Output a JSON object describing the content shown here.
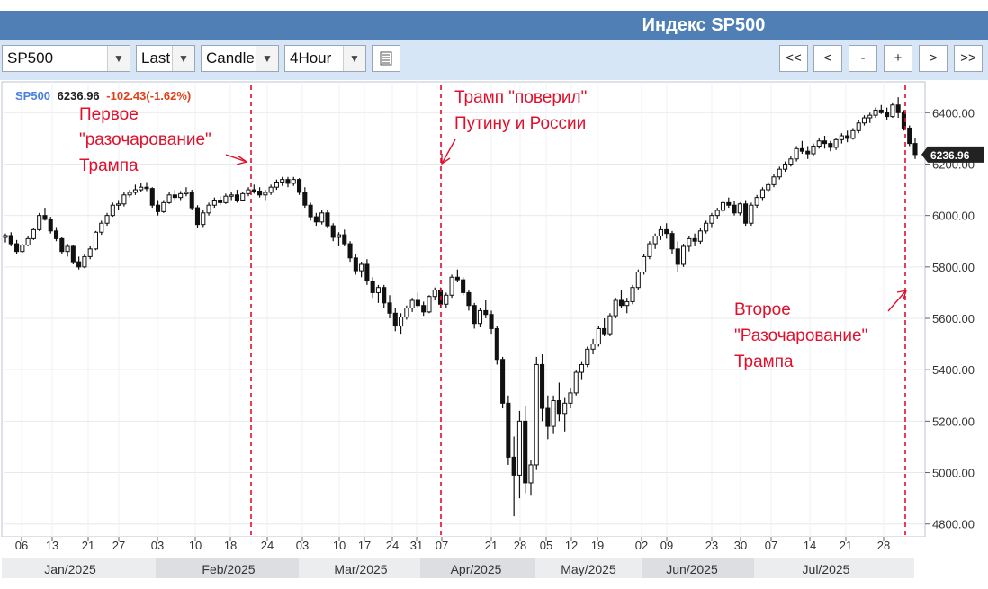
{
  "header": {
    "title": "Индекс SP500"
  },
  "toolbar": {
    "symbol": "SP500",
    "price_type": "Last",
    "chart_style": "Candle",
    "interval": "4Hour",
    "nav": [
      "<<",
      "<",
      "-",
      "+",
      ">",
      ">>"
    ]
  },
  "quote": {
    "symbol": "SP500",
    "last": "6236.96",
    "change": "-102.43(-1.62%)"
  },
  "annotations": {
    "first": [
      "Первое",
      "\"разочарование\"",
      "Трампа"
    ],
    "second": [
      "Трамп \"поверил\"",
      "Путину и России"
    ],
    "third": [
      "Второе",
      "\"Разочарование\"",
      "Трампа"
    ]
  },
  "colors": {
    "accent": "#4f7fb4",
    "annotation": "#e0102c",
    "symbol": "#4a7fe0",
    "change": "#e0401a"
  },
  "chart_data": {
    "type": "candlestick",
    "y_ticks": [
      4800,
      5000,
      5200,
      5400,
      5600,
      5800,
      6000,
      6200,
      6400
    ],
    "y_tick_labels": [
      "4800.00",
      "5000.00",
      "5200.00",
      "5400.00",
      "5600.00",
      "5800.00",
      "6000.00",
      "6200.00",
      "6400.00"
    ],
    "ylim": [
      4750,
      6520
    ],
    "last_price_label": "6236.96",
    "x_tick_labels": [
      "06",
      "13",
      "21",
      "27",
      "03",
      "10",
      "18",
      "24",
      "03",
      "10",
      "17",
      "24",
      "31",
      "07",
      "21",
      "28",
      "05",
      "12",
      "19",
      "02",
      "09",
      "23",
      "30",
      "07",
      "14",
      "21",
      "28"
    ],
    "months": [
      "Jan/2025",
      "Feb/2025",
      "Mar/2025",
      "Apr/2025",
      "May/2025",
      "Jun/2025",
      "Jul/2025"
    ],
    "series": [
      {
        "values": [
          [
            5915,
            5930,
            5895,
            5922
          ],
          [
            5922,
            5935,
            5880,
            5890
          ],
          [
            5890,
            5905,
            5850,
            5860
          ],
          [
            5860,
            5890,
            5855,
            5885
          ],
          [
            5885,
            5920,
            5880,
            5910
          ],
          [
            5910,
            5950,
            5905,
            5945
          ],
          [
            5945,
            6010,
            5940,
            6000
          ],
          [
            6000,
            6030,
            5980,
            5985
          ],
          [
            5985,
            5995,
            5930,
            5940
          ],
          [
            5940,
            5955,
            5900,
            5910
          ],
          [
            5910,
            5915,
            5850,
            5860
          ],
          [
            5860,
            5890,
            5840,
            5880
          ],
          [
            5880,
            5885,
            5810,
            5820
          ],
          [
            5820,
            5840,
            5790,
            5800
          ],
          [
            5800,
            5850,
            5795,
            5840
          ],
          [
            5840,
            5880,
            5830,
            5870
          ],
          [
            5870,
            5940,
            5865,
            5935
          ],
          [
            5935,
            5980,
            5925,
            5970
          ],
          [
            5970,
            6010,
            5960,
            6000
          ],
          [
            6000,
            6050,
            5995,
            6040
          ],
          [
            6040,
            6060,
            6020,
            6045
          ],
          [
            6045,
            6090,
            6035,
            6080
          ],
          [
            6080,
            6100,
            6070,
            6090
          ],
          [
            6090,
            6120,
            6080,
            6100
          ],
          [
            6100,
            6125,
            6090,
            6110
          ],
          [
            6110,
            6130,
            6095,
            6105
          ],
          [
            6105,
            6110,
            6030,
            6040
          ],
          [
            6040,
            6060,
            6000,
            6015
          ],
          [
            6015,
            6060,
            6010,
            6050
          ],
          [
            6050,
            6090,
            6045,
            6080
          ],
          [
            6080,
            6100,
            6060,
            6070
          ],
          [
            6070,
            6095,
            6060,
            6085
          ],
          [
            6085,
            6110,
            6075,
            6090
          ],
          [
            6090,
            6100,
            6020,
            6030
          ],
          [
            6030,
            6040,
            5950,
            5965
          ],
          [
            5965,
            6020,
            5955,
            6010
          ],
          [
            6010,
            6050,
            6000,
            6040
          ],
          [
            6040,
            6070,
            6030,
            6060
          ],
          [
            6060,
            6075,
            6040,
            6050
          ],
          [
            6050,
            6085,
            6045,
            6075
          ],
          [
            6075,
            6090,
            6060,
            6080
          ],
          [
            6080,
            6100,
            6050,
            6060
          ],
          [
            6060,
            6090,
            6055,
            6085
          ],
          [
            6085,
            6110,
            6075,
            6100
          ],
          [
            6100,
            6120,
            6085,
            6095
          ],
          [
            6095,
            6110,
            6070,
            6080
          ],
          [
            6080,
            6100,
            6060,
            6090
          ],
          [
            6090,
            6120,
            6080,
            6110
          ],
          [
            6110,
            6140,
            6100,
            6130
          ],
          [
            6130,
            6150,
            6115,
            6140
          ],
          [
            6140,
            6150,
            6110,
            6125
          ],
          [
            6125,
            6150,
            6115,
            6140
          ],
          [
            6140,
            6145,
            6080,
            6090
          ],
          [
            6090,
            6110,
            6030,
            6040
          ],
          [
            6040,
            6050,
            5980,
            5995
          ],
          [
            5995,
            6010,
            5960,
            5975
          ],
          [
            5975,
            6020,
            5965,
            6010
          ],
          [
            6010,
            6020,
            5950,
            5960
          ],
          [
            5960,
            5970,
            5900,
            5915
          ],
          [
            5915,
            5935,
            5880,
            5925
          ],
          [
            5925,
            5945,
            5880,
            5890
          ],
          [
            5890,
            5900,
            5820,
            5835
          ],
          [
            5835,
            5850,
            5770,
            5785
          ],
          [
            5785,
            5820,
            5760,
            5810
          ],
          [
            5810,
            5830,
            5730,
            5745
          ],
          [
            5745,
            5760,
            5680,
            5700
          ],
          [
            5700,
            5730,
            5660,
            5720
          ],
          [
            5720,
            5730,
            5640,
            5660
          ],
          [
            5660,
            5690,
            5600,
            5620
          ],
          [
            5620,
            5640,
            5550,
            5570
          ],
          [
            5570,
            5620,
            5540,
            5605
          ],
          [
            5605,
            5650,
            5595,
            5640
          ],
          [
            5640,
            5680,
            5625,
            5670
          ],
          [
            5670,
            5700,
            5640,
            5650
          ],
          [
            5650,
            5665,
            5610,
            5625
          ],
          [
            5625,
            5690,
            5620,
            5685
          ],
          [
            5685,
            5720,
            5670,
            5710
          ],
          [
            5710,
            5720,
            5640,
            5655
          ],
          [
            5655,
            5700,
            5640,
            5690
          ],
          [
            5690,
            5770,
            5680,
            5760
          ],
          [
            5760,
            5790,
            5740,
            5750
          ],
          [
            5750,
            5760,
            5690,
            5700
          ],
          [
            5700,
            5710,
            5630,
            5650
          ],
          [
            5650,
            5660,
            5560,
            5580
          ],
          [
            5580,
            5640,
            5565,
            5630
          ],
          [
            5630,
            5670,
            5600,
            5615
          ],
          [
            5615,
            5630,
            5540,
            5560
          ],
          [
            5560,
            5570,
            5420,
            5440
          ],
          [
            5440,
            5450,
            5250,
            5270
          ],
          [
            5270,
            5300,
            5030,
            5060
          ],
          [
            5060,
            5140,
            4830,
            4990
          ],
          [
            4990,
            5240,
            4900,
            5200
          ],
          [
            5200,
            5260,
            4920,
            4960
          ],
          [
            4960,
            5050,
            4910,
            5030
          ],
          [
            5030,
            5450,
            5010,
            5420
          ],
          [
            5420,
            5460,
            5200,
            5250
          ],
          [
            5250,
            5300,
            5130,
            5180
          ],
          [
            5180,
            5300,
            5150,
            5280
          ],
          [
            5280,
            5350,
            5200,
            5230
          ],
          [
            5230,
            5290,
            5160,
            5270
          ],
          [
            5270,
            5330,
            5250,
            5310
          ],
          [
            5310,
            5400,
            5300,
            5390
          ],
          [
            5390,
            5430,
            5360,
            5420
          ],
          [
            5420,
            5490,
            5410,
            5480
          ],
          [
            5480,
            5520,
            5460,
            5500
          ],
          [
            5500,
            5570,
            5490,
            5560
          ],
          [
            5560,
            5600,
            5530,
            5540
          ],
          [
            5540,
            5620,
            5530,
            5610
          ],
          [
            5610,
            5680,
            5600,
            5670
          ],
          [
            5670,
            5710,
            5640,
            5650
          ],
          [
            5650,
            5680,
            5620,
            5665
          ],
          [
            5665,
            5730,
            5655,
            5720
          ],
          [
            5720,
            5790,
            5710,
            5780
          ],
          [
            5780,
            5850,
            5770,
            5840
          ],
          [
            5840,
            5900,
            5830,
            5890
          ],
          [
            5890,
            5930,
            5870,
            5920
          ],
          [
            5920,
            5960,
            5905,
            5945
          ],
          [
            5945,
            5970,
            5910,
            5930
          ],
          [
            5930,
            5940,
            5850,
            5870
          ],
          [
            5870,
            5900,
            5780,
            5810
          ],
          [
            5810,
            5890,
            5800,
            5880
          ],
          [
            5880,
            5920,
            5860,
            5910
          ],
          [
            5910,
            5930,
            5880,
            5900
          ],
          [
            5900,
            5950,
            5890,
            5940
          ],
          [
            5940,
            5980,
            5930,
            5970
          ],
          [
            5970,
            6010,
            5955,
            6000
          ],
          [
            6000,
            6030,
            5985,
            6020
          ],
          [
            6020,
            6060,
            6010,
            6050
          ],
          [
            6050,
            6070,
            6030,
            6040
          ],
          [
            6040,
            6055,
            6000,
            6010
          ],
          [
            6010,
            6050,
            6000,
            6045
          ],
          [
            6045,
            6060,
            5960,
            5970
          ],
          [
            5970,
            6050,
            5960,
            6040
          ],
          [
            6040,
            6080,
            6030,
            6070
          ],
          [
            6070,
            6110,
            6060,
            6100
          ],
          [
            6100,
            6130,
            6090,
            6120
          ],
          [
            6120,
            6160,
            6110,
            6150
          ],
          [
            6150,
            6190,
            6140,
            6180
          ],
          [
            6180,
            6210,
            6170,
            6200
          ],
          [
            6200,
            6230,
            6190,
            6220
          ],
          [
            6220,
            6270,
            6210,
            6260
          ],
          [
            6260,
            6290,
            6240,
            6250
          ],
          [
            6250,
            6270,
            6220,
            6240
          ],
          [
            6240,
            6280,
            6230,
            6270
          ],
          [
            6270,
            6300,
            6260,
            6290
          ],
          [
            6290,
            6310,
            6260,
            6280
          ],
          [
            6280,
            6290,
            6250,
            6265
          ],
          [
            6265,
            6300,
            6255,
            6295
          ],
          [
            6295,
            6320,
            6280,
            6310
          ],
          [
            6310,
            6330,
            6285,
            6300
          ],
          [
            6300,
            6340,
            6295,
            6330
          ],
          [
            6330,
            6370,
            6320,
            6360
          ],
          [
            6360,
            6390,
            6350,
            6380
          ],
          [
            6380,
            6400,
            6360,
            6390
          ],
          [
            6390,
            6420,
            6380,
            6410
          ],
          [
            6410,
            6430,
            6395,
            6400
          ],
          [
            6400,
            6420,
            6370,
            6385
          ],
          [
            6385,
            6440,
            6380,
            6430
          ],
          [
            6430,
            6460,
            6380,
            6400
          ],
          [
            6400,
            6410,
            6330,
            6340
          ],
          [
            6340,
            6350,
            6270,
            6280
          ],
          [
            6280,
            6300,
            6220,
            6237
          ]
        ]
      }
    ]
  }
}
